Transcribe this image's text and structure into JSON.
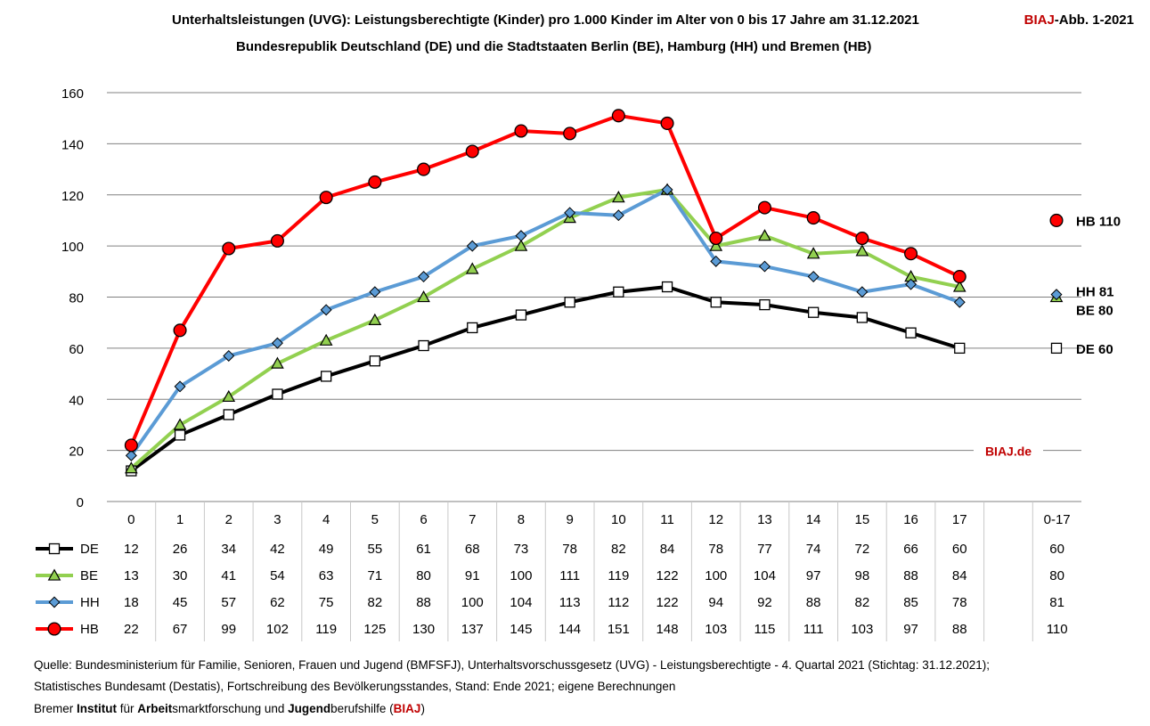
{
  "title_line1": "Unterhaltsleistungen (UVG): Leistungsberechtigte (Kinder) pro 1.000 Kinder im Alter von 0 bis 17 Jahre am 31.12.2021",
  "title_line2": "Bundesrepublik Deutschland (DE) und die Stadtstaaten Berlin (BE), Hamburg (HH) und Bremen (HB)",
  "badge": {
    "brand": "BIAJ",
    "suffix": "-Abb. 1-2021"
  },
  "watermark": "BIAJ.de",
  "colors": {
    "DE": "#000000",
    "BE": "#92d050",
    "HH": "#5b9bd5",
    "HB": "#ff0000",
    "brand": "#c00000",
    "grid": "#808080"
  },
  "chart_data": {
    "type": "line",
    "x": [
      "0",
      "1",
      "2",
      "3",
      "4",
      "5",
      "6",
      "7",
      "8",
      "9",
      "10",
      "11",
      "12",
      "13",
      "14",
      "15",
      "16",
      "17"
    ],
    "ylim": [
      0,
      160
    ],
    "yticks": [
      0,
      20,
      40,
      60,
      80,
      100,
      120,
      140,
      160
    ],
    "grid": true,
    "total_label": "0-17",
    "series": [
      {
        "name": "DE",
        "marker": "square",
        "values": [
          12,
          26,
          34,
          42,
          49,
          55,
          61,
          68,
          73,
          78,
          82,
          84,
          78,
          77,
          74,
          72,
          66,
          60
        ],
        "display": [
          "12",
          "26",
          "34",
          "42",
          "49",
          "55",
          "61",
          "68",
          "73",
          "78",
          "82",
          "84",
          "78",
          "77",
          "74",
          "72",
          "66",
          "60"
        ],
        "total": 60,
        "end_label": "DE 60"
      },
      {
        "name": "BE",
        "marker": "triangle",
        "values": [
          13,
          30,
          41,
          54,
          63,
          71,
          80,
          91,
          100,
          111,
          119,
          122,
          100,
          104,
          97,
          98,
          88,
          84
        ],
        "display": [
          "13",
          "30",
          "41",
          "54",
          "63",
          "71",
          "80",
          "91",
          "100",
          "111",
          "119",
          "122",
          "100",
          "104",
          "97",
          "98",
          "88",
          "84"
        ],
        "total": 80,
        "end_label": "BE 80"
      },
      {
        "name": "HH",
        "marker": "diamond",
        "values": [
          18,
          45,
          57,
          62,
          75,
          82,
          88,
          100,
          104,
          113,
          112,
          122,
          94,
          92,
          88,
          82,
          85,
          78
        ],
        "display": [
          "18",
          "45",
          "57",
          "62",
          "75",
          "82",
          "88",
          "100",
          "104",
          "113",
          "112",
          "122",
          "94",
          "92",
          "88",
          "82",
          "85",
          "78"
        ],
        "total": 81,
        "end_label": "HH 81"
      },
      {
        "name": "HB",
        "marker": "circle",
        "values": [
          22,
          67,
          99,
          102,
          119,
          125,
          130,
          137,
          145,
          144,
          151,
          148,
          103,
          115,
          111,
          103,
          97,
          88
        ],
        "display": [
          "22",
          "67",
          "99",
          "102",
          "119",
          "125",
          "130",
          "137",
          "145",
          "144",
          "151",
          "148",
          "103",
          "115",
          "111",
          "103",
          "97",
          "88"
        ],
        "total": 110,
        "end_label": "HB 110"
      }
    ]
  },
  "source": {
    "line1": "Quelle: Bundesministerium für Familie, Senioren, Frauen und Jugend (BMFSFJ), Unterhaltsvorschussgesetz (UVG) - Leistungsberechtigte - 4. Quartal 2021 (Stichtag: 31.12.2021);",
    "line2": "Statistisches Bundesamt (Destatis), Fortschreibung des Bevölkerungsstandes, Stand: Ende 2021; eigene Berechnungen",
    "line3_parts": [
      "Bremer ",
      "Institut",
      " für ",
      "Arbeit",
      "smarktforschung und ",
      "Jugend",
      "berufshilfe (",
      "BIAJ",
      ")"
    ]
  }
}
